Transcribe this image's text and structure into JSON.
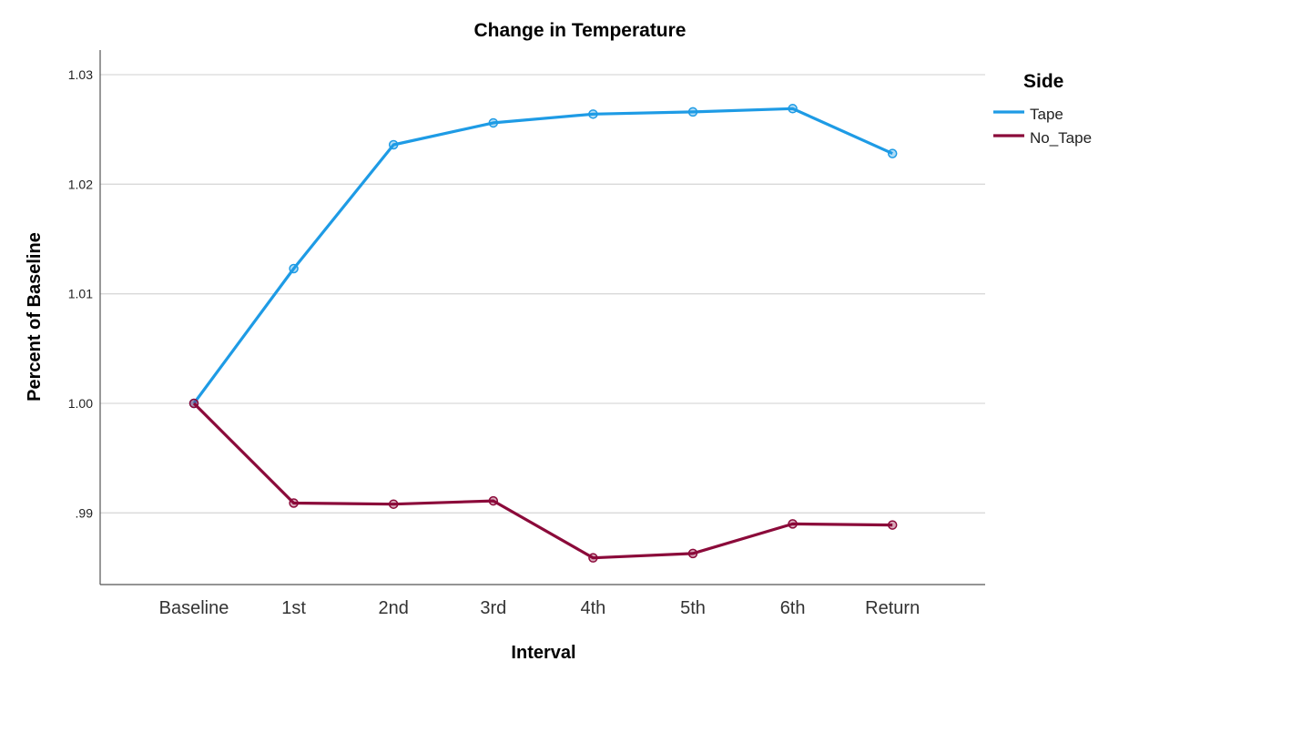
{
  "chart_data": {
    "type": "line",
    "title": "Change in Temperature",
    "xlabel": "Interval",
    "ylabel": "Percent of Baseline",
    "categories": [
      "Baseline",
      "1st",
      "2nd",
      "3rd",
      "4th",
      "5th",
      "6th",
      "Return"
    ],
    "yticks": [
      ".99",
      "1.00",
      "1.01",
      "1.02",
      "1.03"
    ],
    "ylim": [
      0.9835,
      1.0325
    ],
    "grid": true,
    "legend": {
      "title": "Side",
      "placement": "right"
    },
    "series": [
      {
        "name": "Tape",
        "color": "#1E9BE5",
        "values": [
          1.0,
          1.0123,
          1.0236,
          1.0256,
          1.0264,
          1.0266,
          1.0269,
          1.0228
        ]
      },
      {
        "name": "No_Tape",
        "color": "#8B0A3A",
        "values": [
          1.0,
          0.9909,
          0.9908,
          0.9911,
          0.9859,
          0.9863,
          0.989,
          0.9889
        ]
      }
    ]
  }
}
